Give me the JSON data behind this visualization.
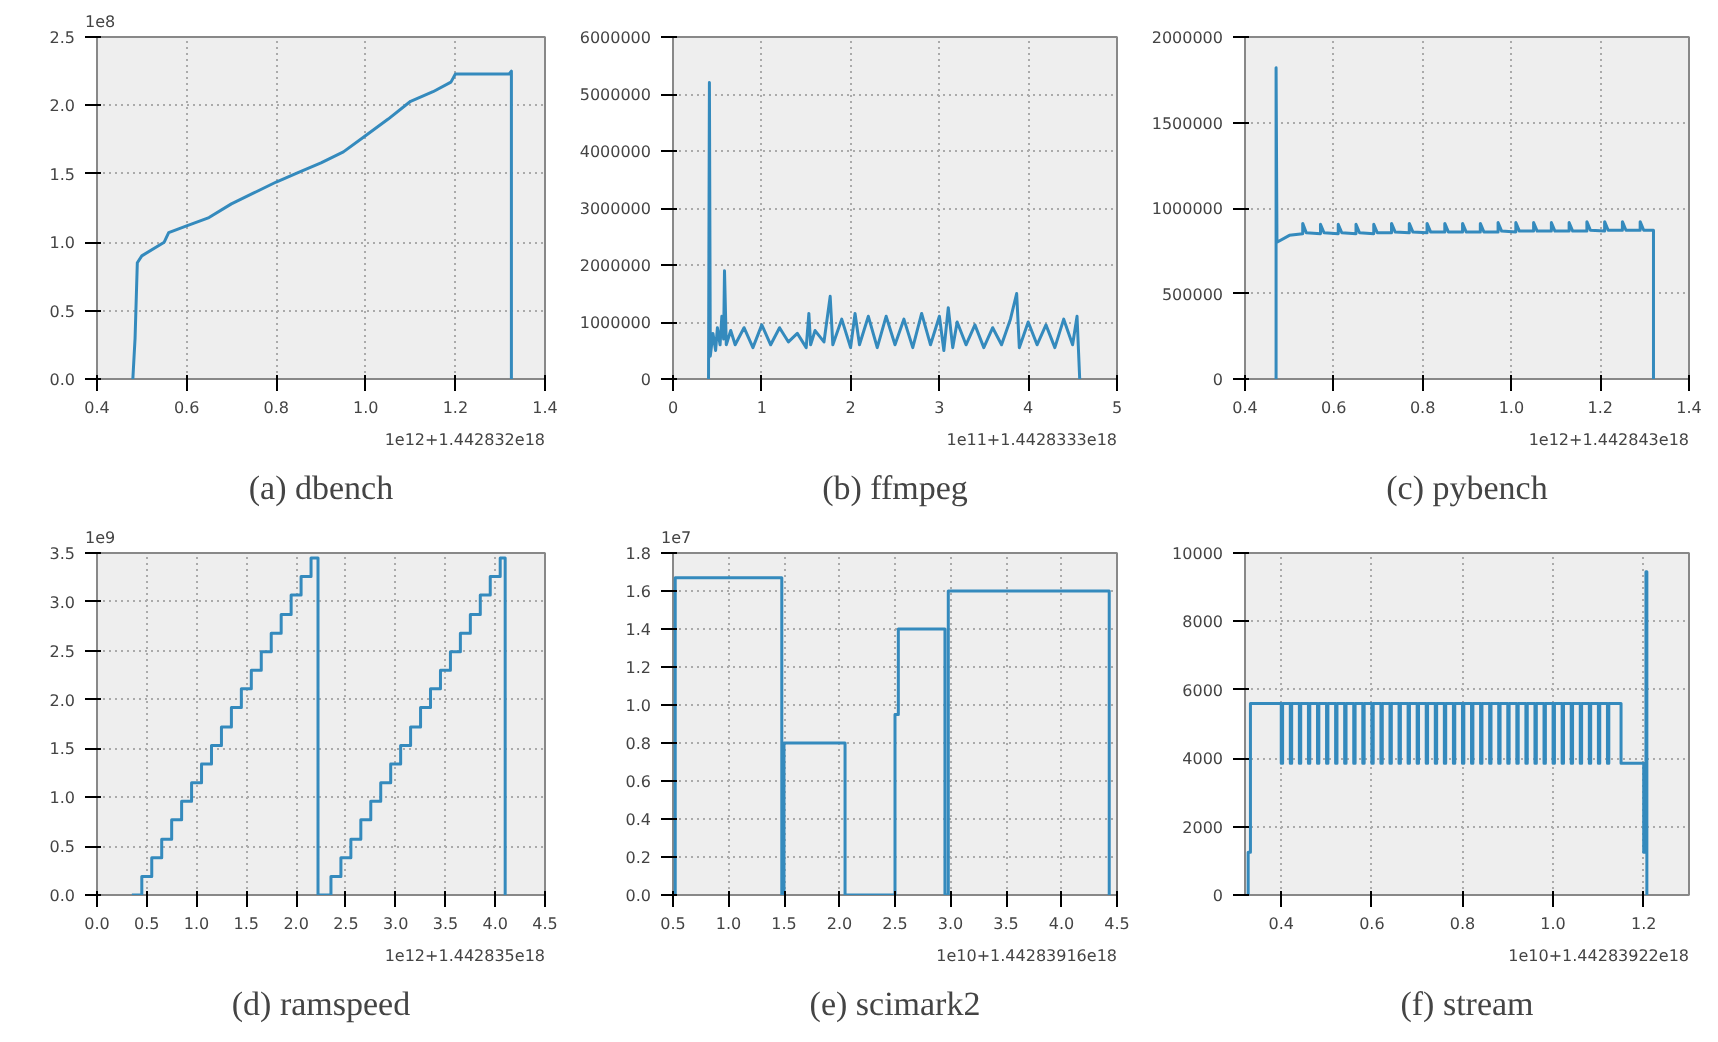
{
  "chart_data": [
    {
      "type": "line",
      "title": "(a) dbench",
      "annotations": [
        "1e8",
        "1e12+1.442832e18"
      ],
      "grid": true,
      "xlim": [
        0.4,
        1.4
      ],
      "xticks": [
        0.4,
        0.6,
        0.8,
        {
          "value": 1.0,
          "label": "1.0"
        },
        1.2,
        1.4
      ],
      "ylim": [
        0,
        2.5
      ],
      "yticks": [
        {
          "value": 0,
          "label": "0.0"
        },
        0.5,
        {
          "value": 1,
          "label": "1.0"
        },
        1.5,
        {
          "value": 2,
          "label": "2.0"
        },
        2.5
      ],
      "x": [
        0.48,
        0.485,
        0.49,
        0.5,
        0.55,
        0.56,
        0.6,
        0.65,
        0.7,
        0.75,
        0.8,
        0.85,
        0.9,
        0.95,
        1.0,
        1.05,
        1.1,
        1.15,
        1.19,
        1.2,
        1.32,
        1.325,
        1.325
      ],
      "series": [
        {
          "color": "#348abd",
          "values": [
            0,
            0.3,
            0.85,
            0.9,
            1.0,
            1.07,
            1.12,
            1.18,
            1.28,
            1.36,
            1.44,
            1.51,
            1.58,
            1.66,
            1.78,
            1.9,
            2.03,
            2.1,
            2.17,
            2.23,
            2.23,
            2.25,
            0
          ]
        }
      ]
    },
    {
      "type": "line",
      "title": "(b) ffmpeg",
      "annotations": [
        "1e11+1.4428333e18"
      ],
      "grid": true,
      "xlim": [
        0,
        5
      ],
      "xticks": [
        0,
        1,
        2,
        3,
        4,
        5
      ],
      "ylim": [
        0,
        6000000
      ],
      "yticks": [
        0,
        1000000,
        2000000,
        3000000,
        4000000,
        5000000,
        6000000
      ],
      "x": [
        0.4,
        0.41,
        0.42,
        0.45,
        0.48,
        0.5,
        0.53,
        0.55,
        0.57,
        0.58,
        0.6,
        0.65,
        0.7,
        0.8,
        0.9,
        1.0,
        1.1,
        1.2,
        1.3,
        1.4,
        1.5,
        1.53,
        1.55,
        1.6,
        1.7,
        1.77,
        1.8,
        1.9,
        2.0,
        2.05,
        2.1,
        2.2,
        2.3,
        2.4,
        2.5,
        2.6,
        2.7,
        2.8,
        2.9,
        3.0,
        3.05,
        3.1,
        3.15,
        3.2,
        3.3,
        3.4,
        3.5,
        3.6,
        3.7,
        3.8,
        3.87,
        3.9,
        4.0,
        4.1,
        4.2,
        4.3,
        4.4,
        4.5,
        4.55,
        4.58
      ],
      "series": [
        {
          "color": "#348abd",
          "values": [
            0,
            5200000,
            400000,
            800000,
            500000,
            900000,
            600000,
            1100000,
            700000,
            1900000,
            600000,
            850000,
            600000,
            900000,
            550000,
            950000,
            600000,
            900000,
            650000,
            800000,
            550000,
            1150000,
            600000,
            850000,
            650000,
            1450000,
            600000,
            1050000,
            550000,
            1150000,
            600000,
            1100000,
            550000,
            1100000,
            600000,
            1050000,
            550000,
            1150000,
            600000,
            1100000,
            500000,
            1250000,
            550000,
            1000000,
            600000,
            950000,
            550000,
            900000,
            600000,
            1050000,
            1500000,
            550000,
            1000000,
            600000,
            950000,
            550000,
            1050000,
            600000,
            1100000,
            0
          ]
        }
      ]
    },
    {
      "type": "line",
      "title": "(c) pybench",
      "annotations": [
        "1e12+1.442843e18"
      ],
      "grid": true,
      "xlim": [
        0.4,
        1.4
      ],
      "xticks": [
        0.4,
        0.6,
        0.8,
        {
          "value": 1.0,
          "label": "1.0"
        },
        1.2,
        1.4
      ],
      "ylim": [
        0,
        2000000
      ],
      "yticks": [
        0,
        500000,
        1000000,
        1500000,
        2000000
      ],
      "x": [
        0.47,
        0.47,
        0.472,
        0.5,
        0.53,
        0.53,
        0.538,
        0.57,
        0.57,
        0.578,
        0.61,
        0.61,
        0.618,
        0.65,
        0.65,
        0.658,
        0.69,
        0.69,
        0.698,
        0.73,
        0.73,
        0.738,
        0.77,
        0.77,
        0.778,
        0.81,
        0.81,
        0.818,
        0.85,
        0.85,
        0.858,
        0.89,
        0.89,
        0.898,
        0.93,
        0.93,
        0.938,
        0.97,
        0.97,
        0.978,
        1.01,
        1.01,
        1.018,
        1.05,
        1.05,
        1.058,
        1.09,
        1.09,
        1.098,
        1.13,
        1.13,
        1.138,
        1.17,
        1.17,
        1.178,
        1.21,
        1.21,
        1.218,
        1.25,
        1.25,
        1.258,
        1.29,
        1.29,
        1.298,
        1.32,
        1.32
      ],
      "series": [
        {
          "color": "#348abd",
          "values": [
            0,
            1820000,
            800000,
            840000,
            850000,
            910000,
            855000,
            850000,
            905000,
            855000,
            850000,
            905000,
            855000,
            850000,
            905000,
            855000,
            850000,
            905000,
            855000,
            855000,
            910000,
            860000,
            855000,
            910000,
            860000,
            855000,
            910000,
            860000,
            860000,
            910000,
            860000,
            860000,
            910000,
            860000,
            860000,
            910000,
            860000,
            860000,
            915000,
            865000,
            860000,
            915000,
            865000,
            865000,
            915000,
            865000,
            865000,
            915000,
            865000,
            865000,
            915000,
            865000,
            865000,
            920000,
            870000,
            865000,
            920000,
            870000,
            870000,
            920000,
            870000,
            870000,
            920000,
            870000,
            870000,
            0
          ]
        }
      ]
    },
    {
      "type": "step",
      "title": "(d) ramspeed",
      "annotations": [
        "1e9",
        "1e12+1.442835e18"
      ],
      "grid": true,
      "xlim": [
        0,
        4.5
      ],
      "xticks": [
        {
          "value": 0,
          "label": "0.0"
        },
        0.5,
        {
          "value": 1,
          "label": "1.0"
        },
        1.5,
        {
          "value": 2,
          "label": "2.0"
        },
        2.5,
        {
          "value": 3,
          "label": "3.0"
        },
        3.5,
        {
          "value": 4,
          "label": "4.0"
        },
        4.5
      ],
      "ylim": [
        0,
        3.5
      ],
      "yticks": [
        {
          "value": 0,
          "label": "0.0"
        },
        0.5,
        {
          "value": 1,
          "label": "1.0"
        },
        1.5,
        {
          "value": 2,
          "label": "2.0"
        },
        2.5,
        {
          "value": 3,
          "label": "3.0"
        },
        3.5
      ],
      "x": [
        0.35,
        0.45,
        0.55,
        0.65,
        0.75,
        0.85,
        0.95,
        1.05,
        1.15,
        1.25,
        1.35,
        1.45,
        1.55,
        1.65,
        1.75,
        1.85,
        1.95,
        2.05,
        2.15,
        2.22,
        2.25,
        2.35,
        2.45,
        2.55,
        2.65,
        2.75,
        2.85,
        2.95,
        3.05,
        3.15,
        3.25,
        3.35,
        3.45,
        3.55,
        3.65,
        3.75,
        3.85,
        3.95,
        4.05,
        4.1
      ],
      "series": [
        {
          "color": "#348abd",
          "values": [
            0,
            0.19,
            0.38,
            0.57,
            0.77,
            0.96,
            1.15,
            1.34,
            1.53,
            1.72,
            1.92,
            2.11,
            2.3,
            2.49,
            2.68,
            2.87,
            3.07,
            3.26,
            3.45,
            0,
            0,
            0.19,
            0.38,
            0.57,
            0.77,
            0.96,
            1.15,
            1.34,
            1.53,
            1.72,
            1.92,
            2.11,
            2.3,
            2.49,
            2.68,
            2.87,
            3.07,
            3.26,
            3.45,
            0
          ]
        }
      ]
    },
    {
      "type": "step",
      "title": "(e) scimark2",
      "annotations": [
        "1e7",
        "1e10+1.44283916e18"
      ],
      "grid": true,
      "xlim": [
        0.5,
        4.5
      ],
      "xticks": [
        0.5,
        {
          "value": 1,
          "label": "1.0"
        },
        1.5,
        {
          "value": 2,
          "label": "2.0"
        },
        2.5,
        {
          "value": 3,
          "label": "3.0"
        },
        3.5,
        {
          "value": 4,
          "label": "4.0"
        },
        4.5
      ],
      "ylim": [
        0,
        1.8
      ],
      "yticks": [
        {
          "value": 0,
          "label": "0.0"
        },
        0.2,
        0.4,
        0.6,
        0.8,
        {
          "value": 1,
          "label": "1.0"
        },
        1.2,
        1.4,
        1.6,
        1.8
      ],
      "x": [
        0.5,
        0.52,
        1.48,
        1.5,
        2.05,
        2.5,
        2.53,
        2.95,
        2.98,
        4.43
      ],
      "series": [
        {
          "color": "#348abd",
          "values": [
            0,
            1.67,
            0,
            0.8,
            0,
            0.95,
            1.4,
            0,
            1.6,
            0
          ]
        }
      ]
    },
    {
      "type": "step",
      "title": "(f) stream",
      "annotations": [
        "1e10+1.44283922e18"
      ],
      "grid": true,
      "xlim": [
        0.32,
        1.3
      ],
      "xticks": [
        0.4,
        0.6,
        0.8,
        {
          "value": 1,
          "label": "1.0"
        },
        1.2
      ],
      "ylim": [
        0,
        10000
      ],
      "yticks": [
        0,
        2000,
        4000,
        6000,
        8000,
        10000
      ],
      "x": [
        0.325,
        0.327,
        0.332,
        0.4,
        0.403,
        0.42,
        0.423,
        0.44,
        0.443,
        0.46,
        0.463,
        0.48,
        0.483,
        0.5,
        0.503,
        0.52,
        0.523,
        0.54,
        0.543,
        0.56,
        0.563,
        0.58,
        0.583,
        0.6,
        0.603,
        0.62,
        0.623,
        0.64,
        0.643,
        0.66,
        0.663,
        0.68,
        0.683,
        0.7,
        0.703,
        0.72,
        0.723,
        0.74,
        0.743,
        0.76,
        0.763,
        0.78,
        0.783,
        0.8,
        0.803,
        0.82,
        0.823,
        0.84,
        0.843,
        0.86,
        0.863,
        0.88,
        0.883,
        0.9,
        0.903,
        0.92,
        0.923,
        0.94,
        0.943,
        0.96,
        0.963,
        0.98,
        0.983,
        1.0,
        1.003,
        1.02,
        1.023,
        1.04,
        1.043,
        1.06,
        1.063,
        1.08,
        1.083,
        1.1,
        1.103,
        1.12,
        1.123,
        1.15,
        1.2,
        1.205,
        1.207
      ],
      "series": [
        {
          "color": "#348abd",
          "values": [
            0,
            1250,
            5600,
            3850,
            5600,
            3850,
            5600,
            3850,
            5600,
            3850,
            5600,
            3850,
            5600,
            3850,
            5600,
            3850,
            5600,
            3850,
            5600,
            3850,
            5600,
            3850,
            5600,
            3850,
            5600,
            3850,
            5600,
            3850,
            5600,
            3850,
            5600,
            3850,
            5600,
            3850,
            5600,
            3850,
            5600,
            3850,
            5600,
            3850,
            5600,
            3850,
            5600,
            3850,
            5600,
            3850,
            5600,
            3850,
            5600,
            3850,
            5600,
            3850,
            5600,
            3850,
            5600,
            3850,
            5600,
            3850,
            5600,
            3850,
            5600,
            3850,
            5600,
            3850,
            5600,
            3850,
            5600,
            3850,
            5600,
            3850,
            5600,
            3850,
            5600,
            3850,
            5600,
            3850,
            5600,
            3850,
            1250,
            9450,
            0
          ]
        }
      ]
    }
  ]
}
